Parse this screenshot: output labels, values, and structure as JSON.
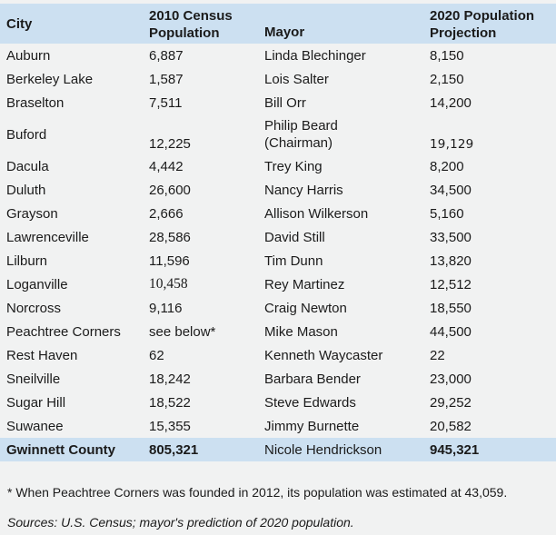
{
  "colors": {
    "page_bg": "#f1f2f2",
    "header_bg": "#cce0f1",
    "total_bg": "#cce0f1",
    "text": "#1b1b1b"
  },
  "table": {
    "header": {
      "city": "City",
      "census_line1": "2010 Census",
      "census_line2": "Population",
      "mayor": "Mayor",
      "projection_line1": "2020 Population",
      "projection_line2": "Projection"
    },
    "rows": [
      {
        "city": "Auburn",
        "census_2010": "6,887",
        "mayor": "Linda Blechinger",
        "projection_2020": "8,150"
      },
      {
        "city": "Berkeley Lake",
        "census_2010": "1,587",
        "mayor": "Lois Salter",
        "projection_2020": "2,150"
      },
      {
        "city": "Braselton",
        "census_2010": "7,511",
        "mayor": "Bill Orr",
        "projection_2020": "14,200"
      },
      {
        "city": "Buford",
        "census_2010": "12,225",
        "mayor": "Philip Beard\n(Chairman)",
        "projection_2020": "19,129",
        "tall": true,
        "projection_style": "altfont"
      },
      {
        "city": "Dacula",
        "census_2010": "4,442",
        "mayor": "Trey King",
        "projection_2020": "8,200"
      },
      {
        "city": "Duluth",
        "census_2010": "26,600",
        "mayor": "Nancy Harris",
        "projection_2020": "34,500"
      },
      {
        "city": "Grayson",
        "census_2010": "2,666",
        "mayor": "Allison Wilkerson",
        "projection_2020": "5,160"
      },
      {
        "city": "Lawrenceville",
        "census_2010": "28,586",
        "mayor": "David Still",
        "projection_2020": "33,500"
      },
      {
        "city": "Lilburn",
        "census_2010": "11,596",
        "mayor": "Tim Dunn",
        "projection_2020": "13,820"
      },
      {
        "city": "Loganville",
        "census_2010": "10,458",
        "mayor": "Rey Martinez",
        "projection_2020": "12,512",
        "census_style": "serif"
      },
      {
        "city": "Norcross",
        "census_2010": "9,116",
        "mayor": "Craig Newton",
        "projection_2020": "18,550"
      },
      {
        "city": "Peachtree Corners",
        "census_2010": "see below*",
        "mayor": "Mike Mason",
        "projection_2020": "44,500"
      },
      {
        "city": "Rest Haven",
        "census_2010": "62",
        "mayor": "Kenneth Waycaster",
        "projection_2020": "22"
      },
      {
        "city": "Sneilville",
        "census_2010": "18,242",
        "mayor": "Barbara Bender",
        "projection_2020": "23,000"
      },
      {
        "city": "Sugar Hill",
        "census_2010": "18,522",
        "mayor": "Steve Edwards",
        "projection_2020": "29,252"
      },
      {
        "city": "Suwanee",
        "census_2010": "15,355",
        "mayor": "Jimmy Burnette",
        "projection_2020": "20,582"
      },
      {
        "city": "Gwinnett County",
        "census_2010": "805,321",
        "mayor": "Nicole Hendrickson",
        "projection_2020": "945,321",
        "total": true
      }
    ]
  },
  "footnotes": {
    "peachtree_note": "* When Peachtree Corners was founded in 2012, its population was estimated at 43,059.",
    "sources": "Sources: U.S. Census; mayor's prediction of 2020 population."
  }
}
